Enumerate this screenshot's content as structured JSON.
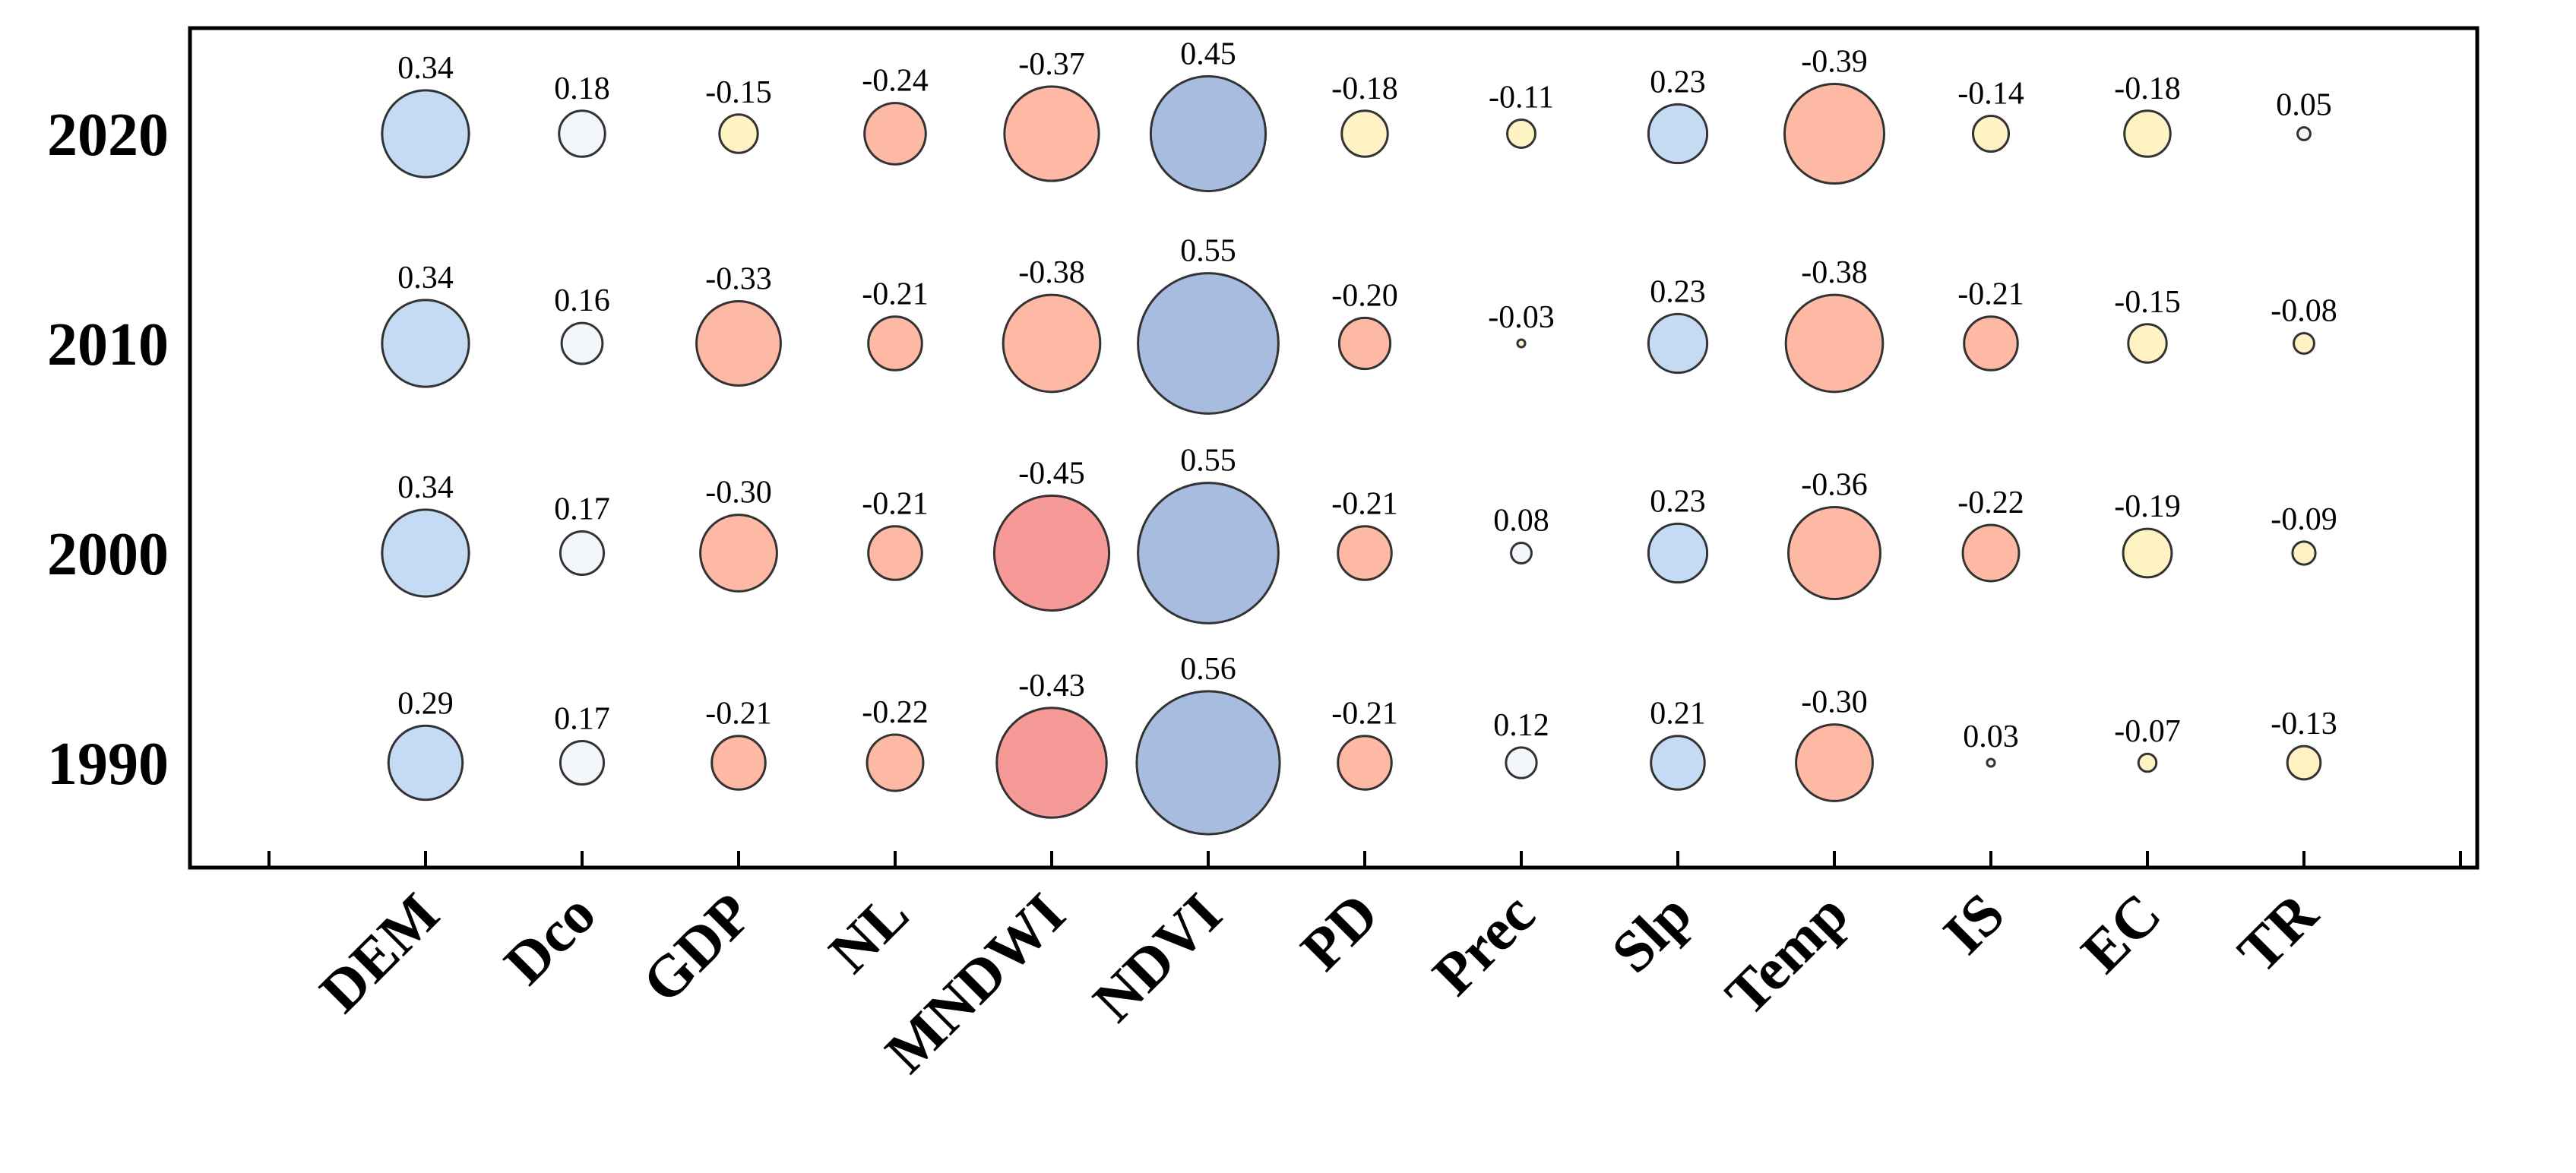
{
  "chart_data": {
    "type": "bubble",
    "title": "",
    "xlabel": "",
    "ylabel": "",
    "grid": false,
    "legend": "none",
    "categories": [
      "DEM",
      "Dco",
      "GDP",
      "NL",
      "MNDWI",
      "NDVI",
      "PD",
      "Prec",
      "Slp",
      "Temp",
      "IS",
      "EC",
      "TR"
    ],
    "years": [
      "2020",
      "2010",
      "2000",
      "1990"
    ],
    "series": [
      {
        "name": "2020",
        "values": [
          0.34,
          0.18,
          -0.15,
          -0.24,
          -0.37,
          0.45,
          -0.18,
          -0.11,
          0.23,
          -0.39,
          -0.14,
          -0.18,
          0.05
        ],
        "labels": [
          "0.34",
          "0.18",
          "-0.15",
          "-0.24",
          "-0.37",
          "0.45",
          "-0.18",
          "-0.11",
          "0.23",
          "-0.39",
          "-0.14",
          "-0.18",
          "0.05"
        ]
      },
      {
        "name": "2010",
        "values": [
          0.34,
          0.16,
          -0.33,
          -0.21,
          -0.38,
          0.55,
          -0.2,
          -0.03,
          0.23,
          -0.38,
          -0.21,
          -0.15,
          -0.08
        ],
        "labels": [
          "0.34",
          "0.16",
          "-0.33",
          "-0.21",
          "-0.38",
          "0.55",
          "-0.20",
          "-0.03",
          "0.23",
          "-0.38",
          "-0.21",
          "-0.15",
          "-0.08"
        ]
      },
      {
        "name": "2000",
        "values": [
          0.34,
          0.17,
          -0.3,
          -0.21,
          -0.45,
          0.55,
          -0.21,
          0.08,
          0.23,
          -0.36,
          -0.22,
          -0.19,
          -0.09
        ],
        "labels": [
          "0.34",
          "0.17",
          "-0.30",
          "-0.21",
          "-0.45",
          "0.55",
          "-0.21",
          "0.08",
          "0.23",
          "-0.36",
          "-0.22",
          "-0.19",
          "-0.09"
        ]
      },
      {
        "name": "1990",
        "values": [
          0.29,
          0.17,
          -0.21,
          -0.22,
          -0.43,
          0.56,
          -0.21,
          0.12,
          0.21,
          -0.3,
          0.03,
          -0.07,
          -0.13
        ],
        "labels": [
          "0.29",
          "0.17",
          "-0.21",
          "-0.22",
          "-0.43",
          "0.56",
          "-0.21",
          "0.12",
          "0.21",
          "-0.30",
          "0.03",
          "-0.07",
          "-0.13"
        ]
      }
    ],
    "colors": {
      "strong_positive": "#a8bcdf",
      "positive": "#c5daf3",
      "weak_positive": "#f3f6fb",
      "weak_negative": "#fff3c4",
      "negative": "#fdb9a4",
      "strong_negative": "#f59a97",
      "stroke": "#333333",
      "axis": "#000000"
    }
  }
}
